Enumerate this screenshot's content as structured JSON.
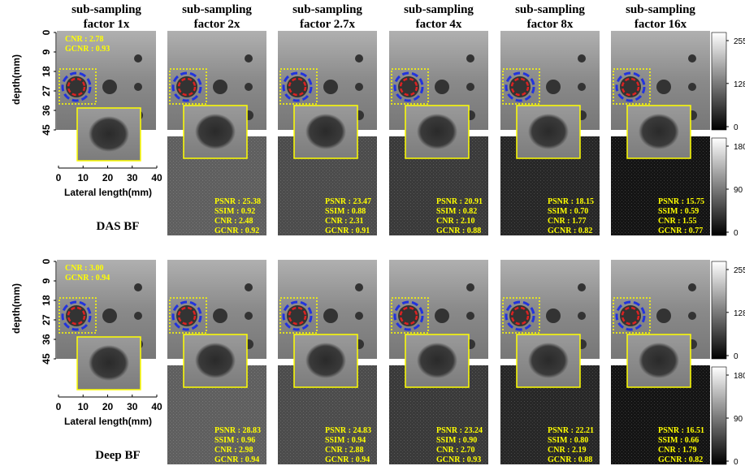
{
  "columns": [
    {
      "title": [
        "sub-sampling",
        "factor 1x"
      ]
    },
    {
      "title": [
        "sub-sampling",
        "factor 2x"
      ]
    },
    {
      "title": [
        "sub-sampling",
        "factor 2.7x"
      ]
    },
    {
      "title": [
        "sub-sampling",
        "factor 4x"
      ]
    },
    {
      "title": [
        "sub-sampling",
        "factor 8x"
      ]
    },
    {
      "title": [
        "sub-sampling",
        "factor 16x"
      ]
    }
  ],
  "rows": [
    {
      "label": "DAS BF",
      "reference_metrics": [
        "CNR : 2.78",
        "GCNR : 0.93"
      ],
      "metrics": [
        [
          "PSNR : 25.38",
          "SSIM : 0.92",
          "CNR : 2.48",
          "GCNR : 0.92"
        ],
        [
          "PSNR : 23.47",
          "SSIM : 0.88",
          "CNR : 2.31",
          "GCNR : 0.91"
        ],
        [
          "PSNR : 20.91",
          "SSIM : 0.82",
          "CNR : 2.10",
          "GCNR : 0.88"
        ],
        [
          "PSNR : 18.15",
          "SSIM : 0.70",
          "CNR : 1.77",
          "GCNR : 0.82"
        ],
        [
          "PSNR : 15.75",
          "SSIM : 0.59",
          "CNR : 1.55",
          "GCNR : 0.77"
        ]
      ]
    },
    {
      "label": "Deep BF",
      "reference_metrics": [
        "CNR : 3.00",
        "GCNR : 0.94"
      ],
      "metrics": [
        [
          "PSNR : 28.83",
          "SSIM : 0.96",
          "CNR : 2.98",
          "GCNR : 0.94"
        ],
        [
          "PSNR : 24.83",
          "SSIM : 0.94",
          "CNR : 2.88",
          "GCNR : 0.94"
        ],
        [
          "PSNR : 23.24",
          "SSIM : 0.90",
          "CNR : 2.70",
          "GCNR : 0.93"
        ],
        [
          "PSNR : 22.21",
          "SSIM : 0.80",
          "CNR : 2.19",
          "GCNR : 0.88"
        ],
        [
          "PSNR : 16.51",
          "SSIM : 0.66",
          "CNR : 1.79",
          "GCNR : 0.82"
        ]
      ]
    }
  ],
  "axes": {
    "depth_label": "depth(mm)",
    "depth_ticks": [
      0,
      9,
      18,
      27,
      36,
      45
    ],
    "lateral_label": "Lateral length(mm)",
    "lateral_ticks": [
      0,
      10,
      20,
      30,
      40
    ]
  },
  "colorbars": {
    "image_ticks": [
      255,
      128,
      0
    ],
    "error_ticks": [
      180,
      90,
      0
    ]
  }
}
